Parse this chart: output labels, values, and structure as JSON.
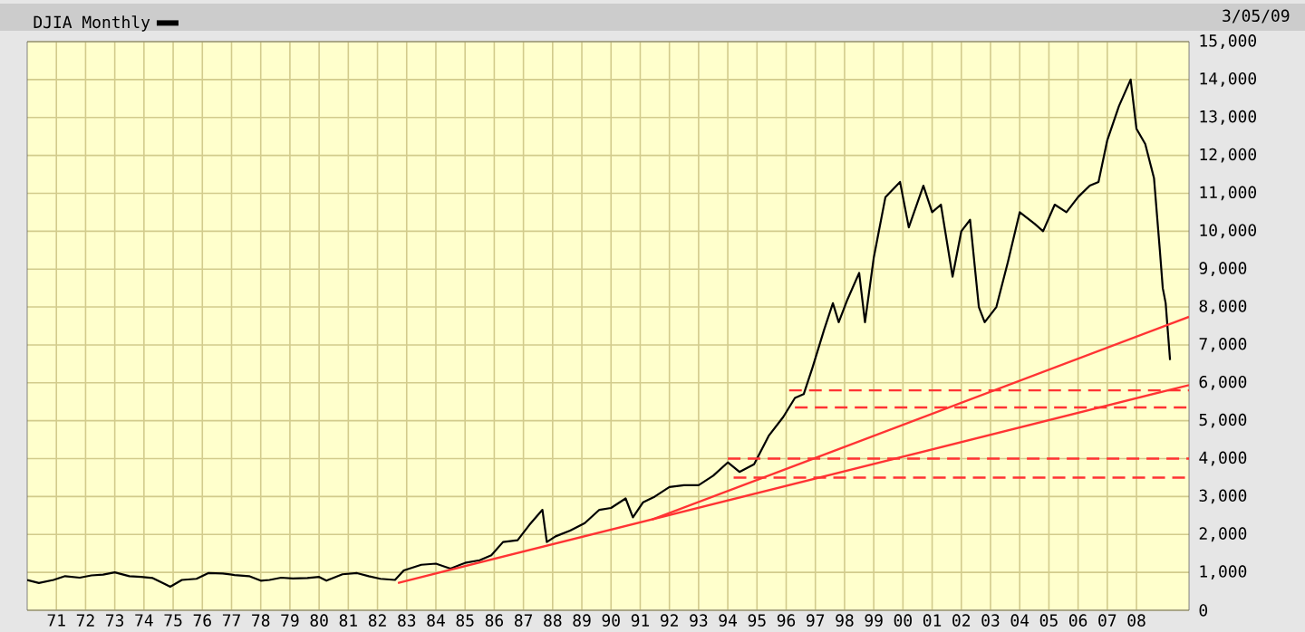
{
  "chart_data": {
    "type": "line",
    "annotations": [
      "3/05/09"
    ],
    "xlim": [
      1970,
      2009.8
    ],
    "xticks": [
      {
        "value": 1971,
        "label": "71"
      },
      {
        "value": 1972,
        "label": "72"
      },
      {
        "value": 1973,
        "label": "73"
      },
      {
        "value": 1974,
        "label": "74"
      },
      {
        "value": 1975,
        "label": "75"
      },
      {
        "value": 1976,
        "label": "76"
      },
      {
        "value": 1977,
        "label": "77"
      },
      {
        "value": 1978,
        "label": "78"
      },
      {
        "value": 1979,
        "label": "79"
      },
      {
        "value": 1980,
        "label": "80"
      },
      {
        "value": 1981,
        "label": "81"
      },
      {
        "value": 1982,
        "label": "82"
      },
      {
        "value": 1983,
        "label": "83"
      },
      {
        "value": 1984,
        "label": "84"
      },
      {
        "value": 1985,
        "label": "85"
      },
      {
        "value": 1986,
        "label": "86"
      },
      {
        "value": 1987,
        "label": "87"
      },
      {
        "value": 1988,
        "label": "88"
      },
      {
        "value": 1989,
        "label": "89"
      },
      {
        "value": 1990,
        "label": "90"
      },
      {
        "value": 1991,
        "label": "91"
      },
      {
        "value": 1992,
        "label": "92"
      },
      {
        "value": 1993,
        "label": "93"
      },
      {
        "value": 1994,
        "label": "94"
      },
      {
        "value": 1995,
        "label": "95"
      },
      {
        "value": 1996,
        "label": "96"
      },
      {
        "value": 1997,
        "label": "97"
      },
      {
        "value": 1998,
        "label": "98"
      },
      {
        "value": 1999,
        "label": "99"
      },
      {
        "value": 2000,
        "label": "00"
      },
      {
        "value": 2001,
        "label": "01"
      },
      {
        "value": 2002,
        "label": "02"
      },
      {
        "value": 2003,
        "label": "03"
      },
      {
        "value": 2004,
        "label": "04"
      },
      {
        "value": 2005,
        "label": "05"
      },
      {
        "value": 2006,
        "label": "06"
      },
      {
        "value": 2007,
        "label": "07"
      },
      {
        "value": 2008,
        "label": "08"
      }
    ],
    "ylim": [
      0,
      15000
    ],
    "yticks": [
      0,
      {
        "value": 1000,
        "label": "1,000"
      },
      {
        "value": 2000,
        "label": "2,000"
      },
      {
        "value": 3000,
        "label": "3,000"
      },
      {
        "value": 4000,
        "label": "4,000"
      },
      {
        "value": 5000,
        "label": "5,000"
      },
      {
        "value": 6000,
        "label": "6,000"
      },
      {
        "value": 7000,
        "label": "7,000"
      },
      {
        "value": 8000,
        "label": "8,000"
      },
      {
        "value": 9000,
        "label": "9,000"
      },
      {
        "value": 10000,
        "label": "10,000"
      },
      {
        "value": 11000,
        "label": "11,000"
      },
      {
        "value": 12000,
        "label": "12,000"
      },
      {
        "value": 13000,
        "label": "13,000"
      },
      {
        "value": 14000,
        "label": "14,000"
      },
      {
        "value": 15000,
        "label": "15,000"
      }
    ],
    "grid": true,
    "legend": "top left",
    "series": [
      {
        "name": "DJIA Monthly",
        "color": "#000000",
        "x": [
          1970.0,
          1970.4,
          1970.9,
          1971.3,
          1971.8,
          1972.2,
          1972.6,
          1973.0,
          1973.5,
          1973.9,
          1974.3,
          1974.7,
          1974.9,
          1975.3,
          1975.8,
          1976.2,
          1976.7,
          1977.1,
          1977.6,
          1978.0,
          1978.3,
          1978.7,
          1979.1,
          1979.6,
          1980.0,
          1980.25,
          1980.8,
          1981.3,
          1981.7,
          1982.1,
          1982.6,
          1982.9,
          1983.5,
          1984.0,
          1984.5,
          1985.0,
          1985.5,
          1985.9,
          1986.3,
          1986.8,
          1987.2,
          1987.65,
          1987.8,
          1988.1,
          1988.6,
          1989.1,
          1989.6,
          1990.0,
          1990.5,
          1990.75,
          1991.1,
          1991.5,
          1992.0,
          1992.5,
          1993.0,
          1993.5,
          1994.0,
          1994.4,
          1994.9,
          1995.4,
          1995.9,
          1996.3,
          1996.6,
          1996.9,
          1997.3,
          1997.6,
          1997.8,
          1998.1,
          1998.5,
          1998.7,
          1999.0,
          1999.4,
          1999.9,
          2000.2,
          2000.7,
          2001.0,
          2001.3,
          2001.7,
          2002.0,
          2002.3,
          2002.6,
          2002.8,
          2003.2,
          2003.6,
          2004.0,
          2004.5,
          2004.8,
          2005.2,
          2005.6,
          2006.0,
          2006.4,
          2006.7,
          2007.0,
          2007.4,
          2007.8,
          2008.0,
          2008.3,
          2008.6,
          2008.8,
          2008.9,
          2009.0,
          2009.15
        ],
        "values": [
          800,
          720,
          800,
          900,
          860,
          920,
          940,
          1000,
          900,
          880,
          850,
          700,
          620,
          800,
          830,
          980,
          970,
          930,
          900,
          780,
          800,
          860,
          840,
          850,
          880,
          780,
          950,
          980,
          900,
          830,
          800,
          1050,
          1200,
          1230,
          1100,
          1250,
          1320,
          1450,
          1800,
          1850,
          2250,
          2650,
          1800,
          1950,
          2100,
          2300,
          2650,
          2700,
          2950,
          2450,
          2850,
          3000,
          3250,
          3300,
          3300,
          3550,
          3900,
          3650,
          3850,
          4600,
          5100,
          5600,
          5700,
          6400,
          7400,
          8100,
          7600,
          8200,
          8900,
          7600,
          9300,
          10900,
          11300,
          10100,
          11200,
          10500,
          10700,
          8800,
          10000,
          10300,
          8000,
          7600,
          8000,
          9200,
          10500,
          10200,
          10000,
          10700,
          10500,
          10900,
          11200,
          11300,
          12400,
          13300,
          14000,
          12700,
          12300,
          11400,
          9500,
          8500,
          8100,
          6600
        ]
      },
      {
        "color": "#ff3333",
        "x": [
          1982.7,
          2009.8
        ],
        "values": [
          720,
          5940
        ]
      },
      {
        "color": "#ff3333",
        "x": [
          1991.4,
          2009.8
        ],
        "values": [
          2390,
          7740
        ]
      },
      {
        "color": "#ff3333",
        "line_style": "dashed",
        "x": [
          1996.1,
          2009.8
        ],
        "values": [
          5800,
          5800
        ]
      },
      {
        "color": "#ff3333",
        "line_style": "dashed",
        "x": [
          1996.3,
          2009.8
        ],
        "values": [
          5350,
          5350
        ]
      },
      {
        "color": "#ff3333",
        "line_style": "dashed",
        "x": [
          1994.0,
          2009.8
        ],
        "values": [
          4000,
          4000
        ]
      },
      {
        "color": "#ff3333",
        "line_style": "dashed",
        "x": [
          1994.2,
          2009.8
        ],
        "values": [
          3500,
          3500
        ]
      }
    ]
  }
}
